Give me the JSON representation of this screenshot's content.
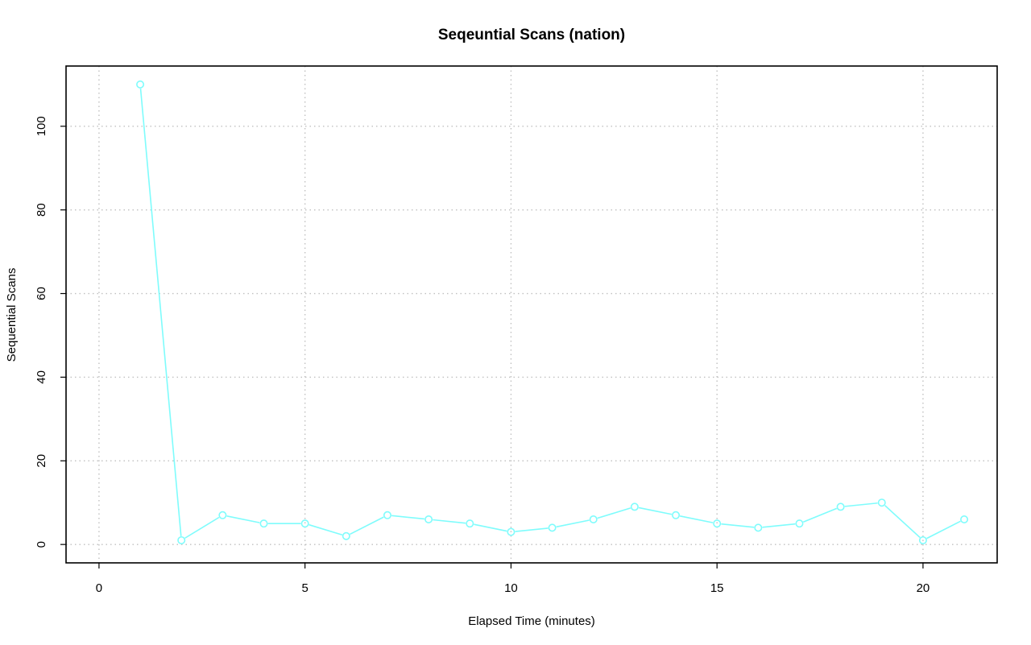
{
  "chart_data": {
    "type": "line",
    "title": "Seqeuntial Scans (nation)",
    "xlabel": "Elapsed Time (minutes)",
    "ylabel": "Sequential Scans",
    "xlim": [
      -0.8,
      21.8
    ],
    "ylim": [
      -4.4,
      114.4
    ],
    "xticks": [
      0,
      5,
      10,
      15,
      20
    ],
    "yticks": [
      0,
      20,
      40,
      60,
      80,
      100
    ],
    "grid": true,
    "series": [
      {
        "color": "#7ffcfc",
        "marker": "circle",
        "x": [
          1,
          2,
          3,
          4,
          5,
          6,
          7,
          8,
          9,
          10,
          11,
          12,
          13,
          14,
          15,
          16,
          17,
          18,
          19,
          20,
          21
        ],
        "y": [
          110,
          1,
          7,
          5,
          5,
          2,
          7,
          6,
          5,
          3,
          4,
          6,
          9,
          7,
          5,
          4,
          5,
          9,
          10,
          1,
          6
        ]
      }
    ]
  }
}
